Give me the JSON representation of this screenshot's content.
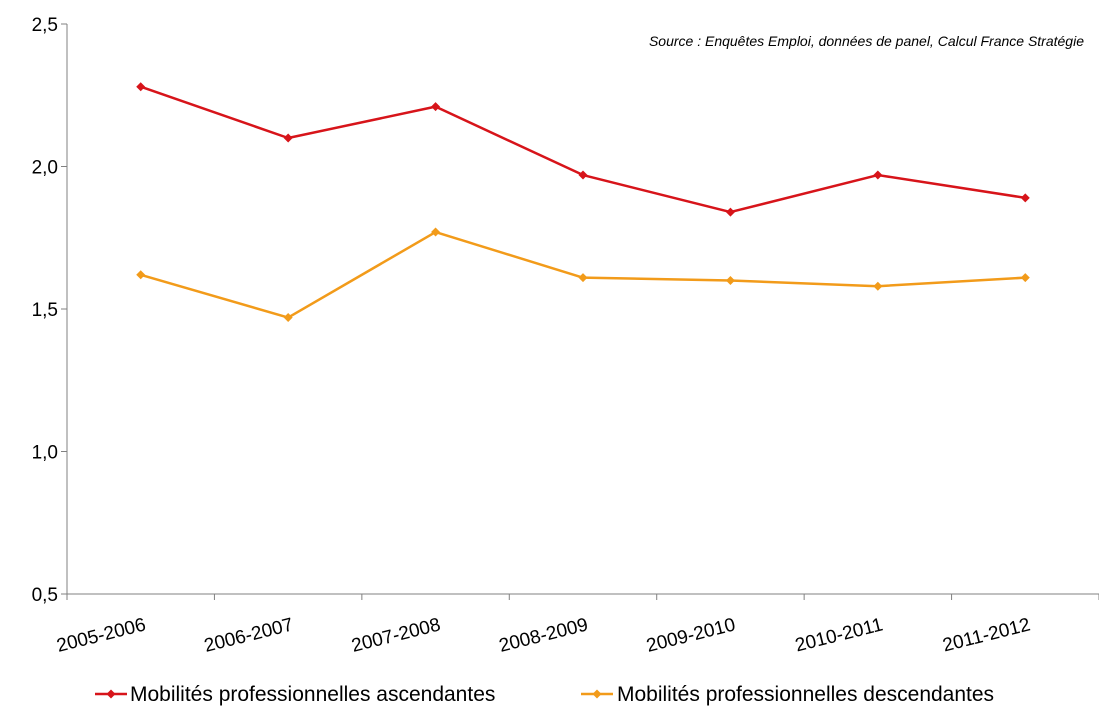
{
  "chart_data": {
    "type": "line",
    "title": "",
    "source": "Source : Enquêtes Emploi, données de panel, Calcul France Stratégie",
    "xlabel": "",
    "ylabel": "",
    "categories": [
      "2005-2006",
      "2006-2007",
      "2007-2008",
      "2008-2009",
      "2009-2010",
      "2010-2011",
      "2011-2012"
    ],
    "ylim": [
      0.5,
      2.5
    ],
    "yticks": [
      "0,5",
      "1,0",
      "1,5",
      "2,0",
      "2,5"
    ],
    "yticks_values": [
      0.5,
      1.0,
      1.5,
      2.0,
      2.5
    ],
    "grid": false,
    "legend_position": "bottom",
    "series": [
      {
        "name": "Mobilités professionnelles ascendantes",
        "color": "#D7141A",
        "values": [
          2.28,
          2.1,
          2.21,
          1.97,
          1.84,
          1.97,
          1.89
        ]
      },
      {
        "name": "Mobilités professionnelles descendantes",
        "color": "#F29B1A",
        "values": [
          1.62,
          1.47,
          1.77,
          1.61,
          1.6,
          1.58,
          1.61
        ]
      }
    ]
  }
}
